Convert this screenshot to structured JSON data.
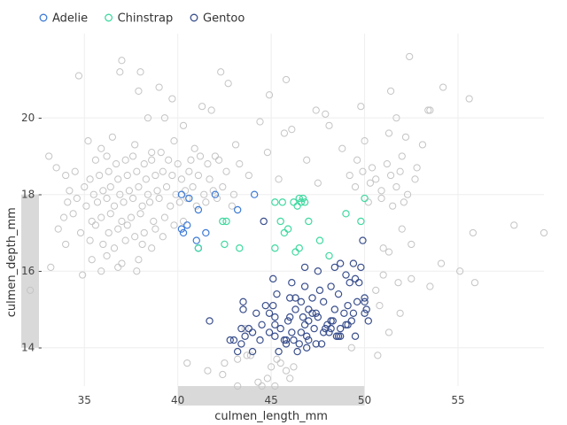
{
  "chart_data": {
    "type": "scatter",
    "xlabel": "culmen_length_mm",
    "ylabel": "culmen_depth_mm",
    "xlim": [
      32,
      59.6
    ],
    "ylim": [
      13,
      22.2
    ],
    "xticks": [
      35,
      40,
      45,
      50,
      55
    ],
    "yticks": [
      14,
      16,
      18,
      20
    ],
    "grid": true,
    "legend": "top-left",
    "selection": {
      "x_range": [
        40,
        50
      ],
      "y_range": [
        14,
        18
      ],
      "color": "#d9d9d9"
    },
    "background_points_color": "#c4c4c4",
    "series": [
      {
        "name": "Adelie",
        "color": "#3e7bd6",
        "x": [
          40.2,
          40.6,
          41.1,
          42.0,
          43.2,
          44.1,
          40.5,
          41.5,
          40.2,
          40.3,
          41.0,
          41.1
        ],
        "y": [
          18.0,
          17.9,
          17.6,
          18.0,
          17.6,
          18.0,
          17.2,
          17.0,
          17.1,
          17.0,
          16.8,
          16.6
        ]
      },
      {
        "name": "Chinstrap",
        "color": "#40d9a0",
        "x": [
          45.2,
          45.6,
          46.5,
          46.7,
          46.8,
          46.4,
          46.6,
          49.0,
          49.8,
          50.0,
          42.4,
          42.6,
          45.5,
          45.7,
          45.9,
          47.0,
          47.6,
          45.2,
          46.3,
          46.5,
          48.1,
          41.1,
          42.5,
          43.3,
          46.2
        ],
        "y": [
          17.8,
          17.8,
          17.9,
          17.9,
          17.8,
          17.7,
          17.8,
          17.5,
          17.3,
          17.9,
          17.3,
          17.3,
          17.3,
          17.0,
          17.1,
          17.3,
          16.8,
          16.6,
          16.5,
          16.6,
          16.4,
          16.6,
          16.7,
          16.6,
          17.8
        ]
      },
      {
        "name": "Gentoo",
        "color": "#3a4f8c",
        "x": [
          44.6,
          49.9,
          46.8,
          48.7,
          49.0,
          49.4,
          49.8,
          45.1,
          46.1,
          47.6,
          48.2,
          48.6,
          49.2,
          49.5,
          50.0,
          45.3,
          46.0,
          46.6,
          47.2,
          47.8,
          48.4,
          49.1,
          49.6,
          50.1,
          43.5,
          44.9,
          45.2,
          46.3,
          47.0,
          47.5,
          48.0,
          48.9,
          49.3,
          50.0,
          41.7,
          43.4,
          44.5,
          45.5,
          46.1,
          46.9,
          47.3,
          48.1,
          48.7,
          49.0,
          49.5,
          43.0,
          43.6,
          44.9,
          45.2,
          45.8,
          46.2,
          46.6,
          47.0,
          47.7,
          48.2,
          48.6,
          43.4,
          44.4,
          45.4,
          46.4,
          46.9,
          47.4,
          42.8,
          43.2,
          44.0,
          45.7,
          46.5,
          47.9,
          48.5,
          44.2,
          45.1,
          46.0,
          46.8,
          47.4,
          48.2,
          49.1,
          50.0,
          43.8,
          45.2,
          45.9,
          46.7,
          47.2,
          47.8,
          48.7,
          49.4,
          46.8,
          43.5,
          44.0,
          45.8,
          46.3,
          47.5,
          48.4,
          49.7,
          50.2,
          44.7,
          47.0,
          48.3
        ],
        "y": [
          17.3,
          16.8,
          16.1,
          16.2,
          15.9,
          16.2,
          16.1,
          15.8,
          15.7,
          15.5,
          15.6,
          15.4,
          15.7,
          15.8,
          15.3,
          15.4,
          15.3,
          15.2,
          15.3,
          15.2,
          15.0,
          15.1,
          15.2,
          15.0,
          15.2,
          14.9,
          14.8,
          15.0,
          14.7,
          14.8,
          14.6,
          14.9,
          14.7,
          14.9,
          14.7,
          14.5,
          14.6,
          14.5,
          14.4,
          14.3,
          14.5,
          14.4,
          14.3,
          14.6,
          14.3,
          14.2,
          14.3,
          14.4,
          14.3,
          14.1,
          14.2,
          14.4,
          14.2,
          14.1,
          14.5,
          14.3,
          14.1,
          14.2,
          13.9,
          13.9,
          14.0,
          14.1,
          14.2,
          13.9,
          13.9,
          14.2,
          14.1,
          14.5,
          14.3,
          14.9,
          15.1,
          14.8,
          14.6,
          14.9,
          14.7,
          14.6,
          15.2,
          14.5,
          14.6,
          14.7,
          14.8,
          14.9,
          14.4,
          14.5,
          14.9,
          15.6,
          15.0,
          14.4,
          14.2,
          15.3,
          16.0,
          16.1,
          15.7,
          14.7,
          15.1,
          15.0,
          14.7
        ]
      }
    ],
    "background_points": {
      "x": [
        34.7,
        36.9,
        37.0,
        37.9,
        38.0,
        39.0,
        39.7,
        41.3,
        42.3,
        42.7,
        44.9,
        45.8,
        47.4,
        51.4,
        52.4,
        54.2,
        55.6,
        38.4,
        39.3,
        40.3,
        41.8,
        44.4,
        45.7,
        47.9,
        48.1,
        49.8,
        51.7,
        53.4,
        33.1,
        35.2,
        35.9,
        36.5,
        37.7,
        38.6,
        39.8,
        40.9,
        42.0,
        43.1,
        44.8,
        48.8,
        50.0,
        51.3,
        52.2,
        53.1,
        35.6,
        36.2,
        36.7,
        37.2,
        37.6,
        38.2,
        38.6,
        39.1,
        39.5,
        40.0,
        40.7,
        41.2,
        41.6,
        42.2,
        43.3,
        46.9,
        49.6,
        50.4,
        51.2,
        52.0,
        52.8,
        33.5,
        34.0,
        34.5,
        35.3,
        35.8,
        36.3,
        36.8,
        37.3,
        37.8,
        38.3,
        38.8,
        39.2,
        39.7,
        40.2,
        40.6,
        41.1,
        41.7,
        42.6,
        43.8,
        45.4,
        49.2,
        49.9,
        50.6,
        51.4,
        51.9,
        52.7,
        34.2,
        35.0,
        35.5,
        36.0,
        36.4,
        36.9,
        37.4,
        37.9,
        38.4,
        38.9,
        39.4,
        39.9,
        40.4,
        40.8,
        41.4,
        41.9,
        42.4,
        43.0,
        47.5,
        49.5,
        50.3,
        50.9,
        51.7,
        52.3,
        34.1,
        34.6,
        35.1,
        35.7,
        36.2,
        36.6,
        37.1,
        37.6,
        38.1,
        38.5,
        39.0,
        39.6,
        40.1,
        40.5,
        41.0,
        41.5,
        42.1,
        42.9,
        50.2,
        50.9,
        51.5,
        52.1,
        33.9,
        34.4,
        35.4,
        35.9,
        36.4,
        37.0,
        37.5,
        38.0,
        38.7,
        39.3,
        39.8,
        40.3,
        52.0,
        58.0,
        33.6,
        34.8,
        35.6,
        36.3,
        36.8,
        37.3,
        37.7,
        38.2,
        38.8,
        39.2,
        55.8,
        59.6,
        34.0,
        35.3,
        36.0,
        36.6,
        37.2,
        38.1,
        38.6,
        51.0,
        52.5,
        35.4,
        36.2,
        37.0,
        37.9,
        51.3,
        54.1,
        55.1,
        33.2,
        34.9,
        35.9,
        36.8,
        37.8,
        51.0,
        52.5,
        32.1,
        50.6,
        51.8,
        53.5,
        55.9,
        50.8,
        51.9,
        40.5,
        42.5,
        43.2,
        43.7,
        43.9,
        45.3,
        45.5,
        46.2,
        42.4,
        45.0,
        45.8,
        41.6,
        44.8,
        46.0,
        43.2,
        44.3,
        45.2,
        44.5,
        43.6,
        49.3,
        50.7,
        51.3,
        46.1,
        53.5
      ],
      "y": [
        21.1,
        21.2,
        21.5,
        20.7,
        21.2,
        20.8,
        20.5,
        20.3,
        21.2,
        20.9,
        20.6,
        21.0,
        20.2,
        20.7,
        21.6,
        20.8,
        20.5,
        20.0,
        20.0,
        19.8,
        20.2,
        19.9,
        19.6,
        20.1,
        19.8,
        20.3,
        20.0,
        20.2,
        19.0,
        19.4,
        19.2,
        19.5,
        19.3,
        19.1,
        19.4,
        19.2,
        19.0,
        19.3,
        19.1,
        19.2,
        19.4,
        19.6,
        19.5,
        19.3,
        18.9,
        19.0,
        18.8,
        18.9,
        19.0,
        18.8,
        18.9,
        19.1,
        18.9,
        18.8,
        18.9,
        19.0,
        18.8,
        18.9,
        18.8,
        18.9,
        18.9,
        18.7,
        18.8,
        19.0,
        18.7,
        18.7,
        18.5,
        18.6,
        18.4,
        18.5,
        18.6,
        18.4,
        18.5,
        18.6,
        18.4,
        18.5,
        18.6,
        18.5,
        18.4,
        18.6,
        18.5,
        18.4,
        18.6,
        18.5,
        18.4,
        18.5,
        18.6,
        18.4,
        18.5,
        18.6,
        18.4,
        18.1,
        18.2,
        18.0,
        18.1,
        18.2,
        18.0,
        18.1,
        18.2,
        18.0,
        18.1,
        18.2,
        18.0,
        18.1,
        18.2,
        18.0,
        18.1,
        18.2,
        18.0,
        18.3,
        18.2,
        18.3,
        18.1,
        18.2,
        18.0,
        17.8,
        17.9,
        17.7,
        17.8,
        17.9,
        17.7,
        17.8,
        17.9,
        17.7,
        17.8,
        17.9,
        17.7,
        17.8,
        17.9,
        17.7,
        17.8,
        17.9,
        17.7,
        17.8,
        17.9,
        17.7,
        17.8,
        17.4,
        17.5,
        17.3,
        17.4,
        17.5,
        17.3,
        17.4,
        17.5,
        17.3,
        17.4,
        17.2,
        17.3,
        17.1,
        17.2,
        17.1,
        17.0,
        17.2,
        17.0,
        17.1,
        17.2,
        16.9,
        17.0,
        17.1,
        16.9,
        17.0,
        17.0,
        16.7,
        16.8,
        16.7,
        16.6,
        16.8,
        16.7,
        16.6,
        16.6,
        16.7,
        16.3,
        16.4,
        16.2,
        16.3,
        16.5,
        16.2,
        16.0,
        16.1,
        15.9,
        16.0,
        16.1,
        16.0,
        15.9,
        15.8,
        15.5,
        15.5,
        15.7,
        15.6,
        15.7,
        15.1,
        14.9,
        13.6,
        13.6,
        13.7,
        13.8,
        13.8,
        13.7,
        13.6,
        13.5,
        13.3,
        13.5,
        13.4,
        13.4,
        13.2,
        13.2,
        13.0,
        13.1,
        13.0,
        13.0,
        14.5,
        14.0,
        13.8,
        14.4,
        19.7,
        20.2
      ]
    }
  }
}
